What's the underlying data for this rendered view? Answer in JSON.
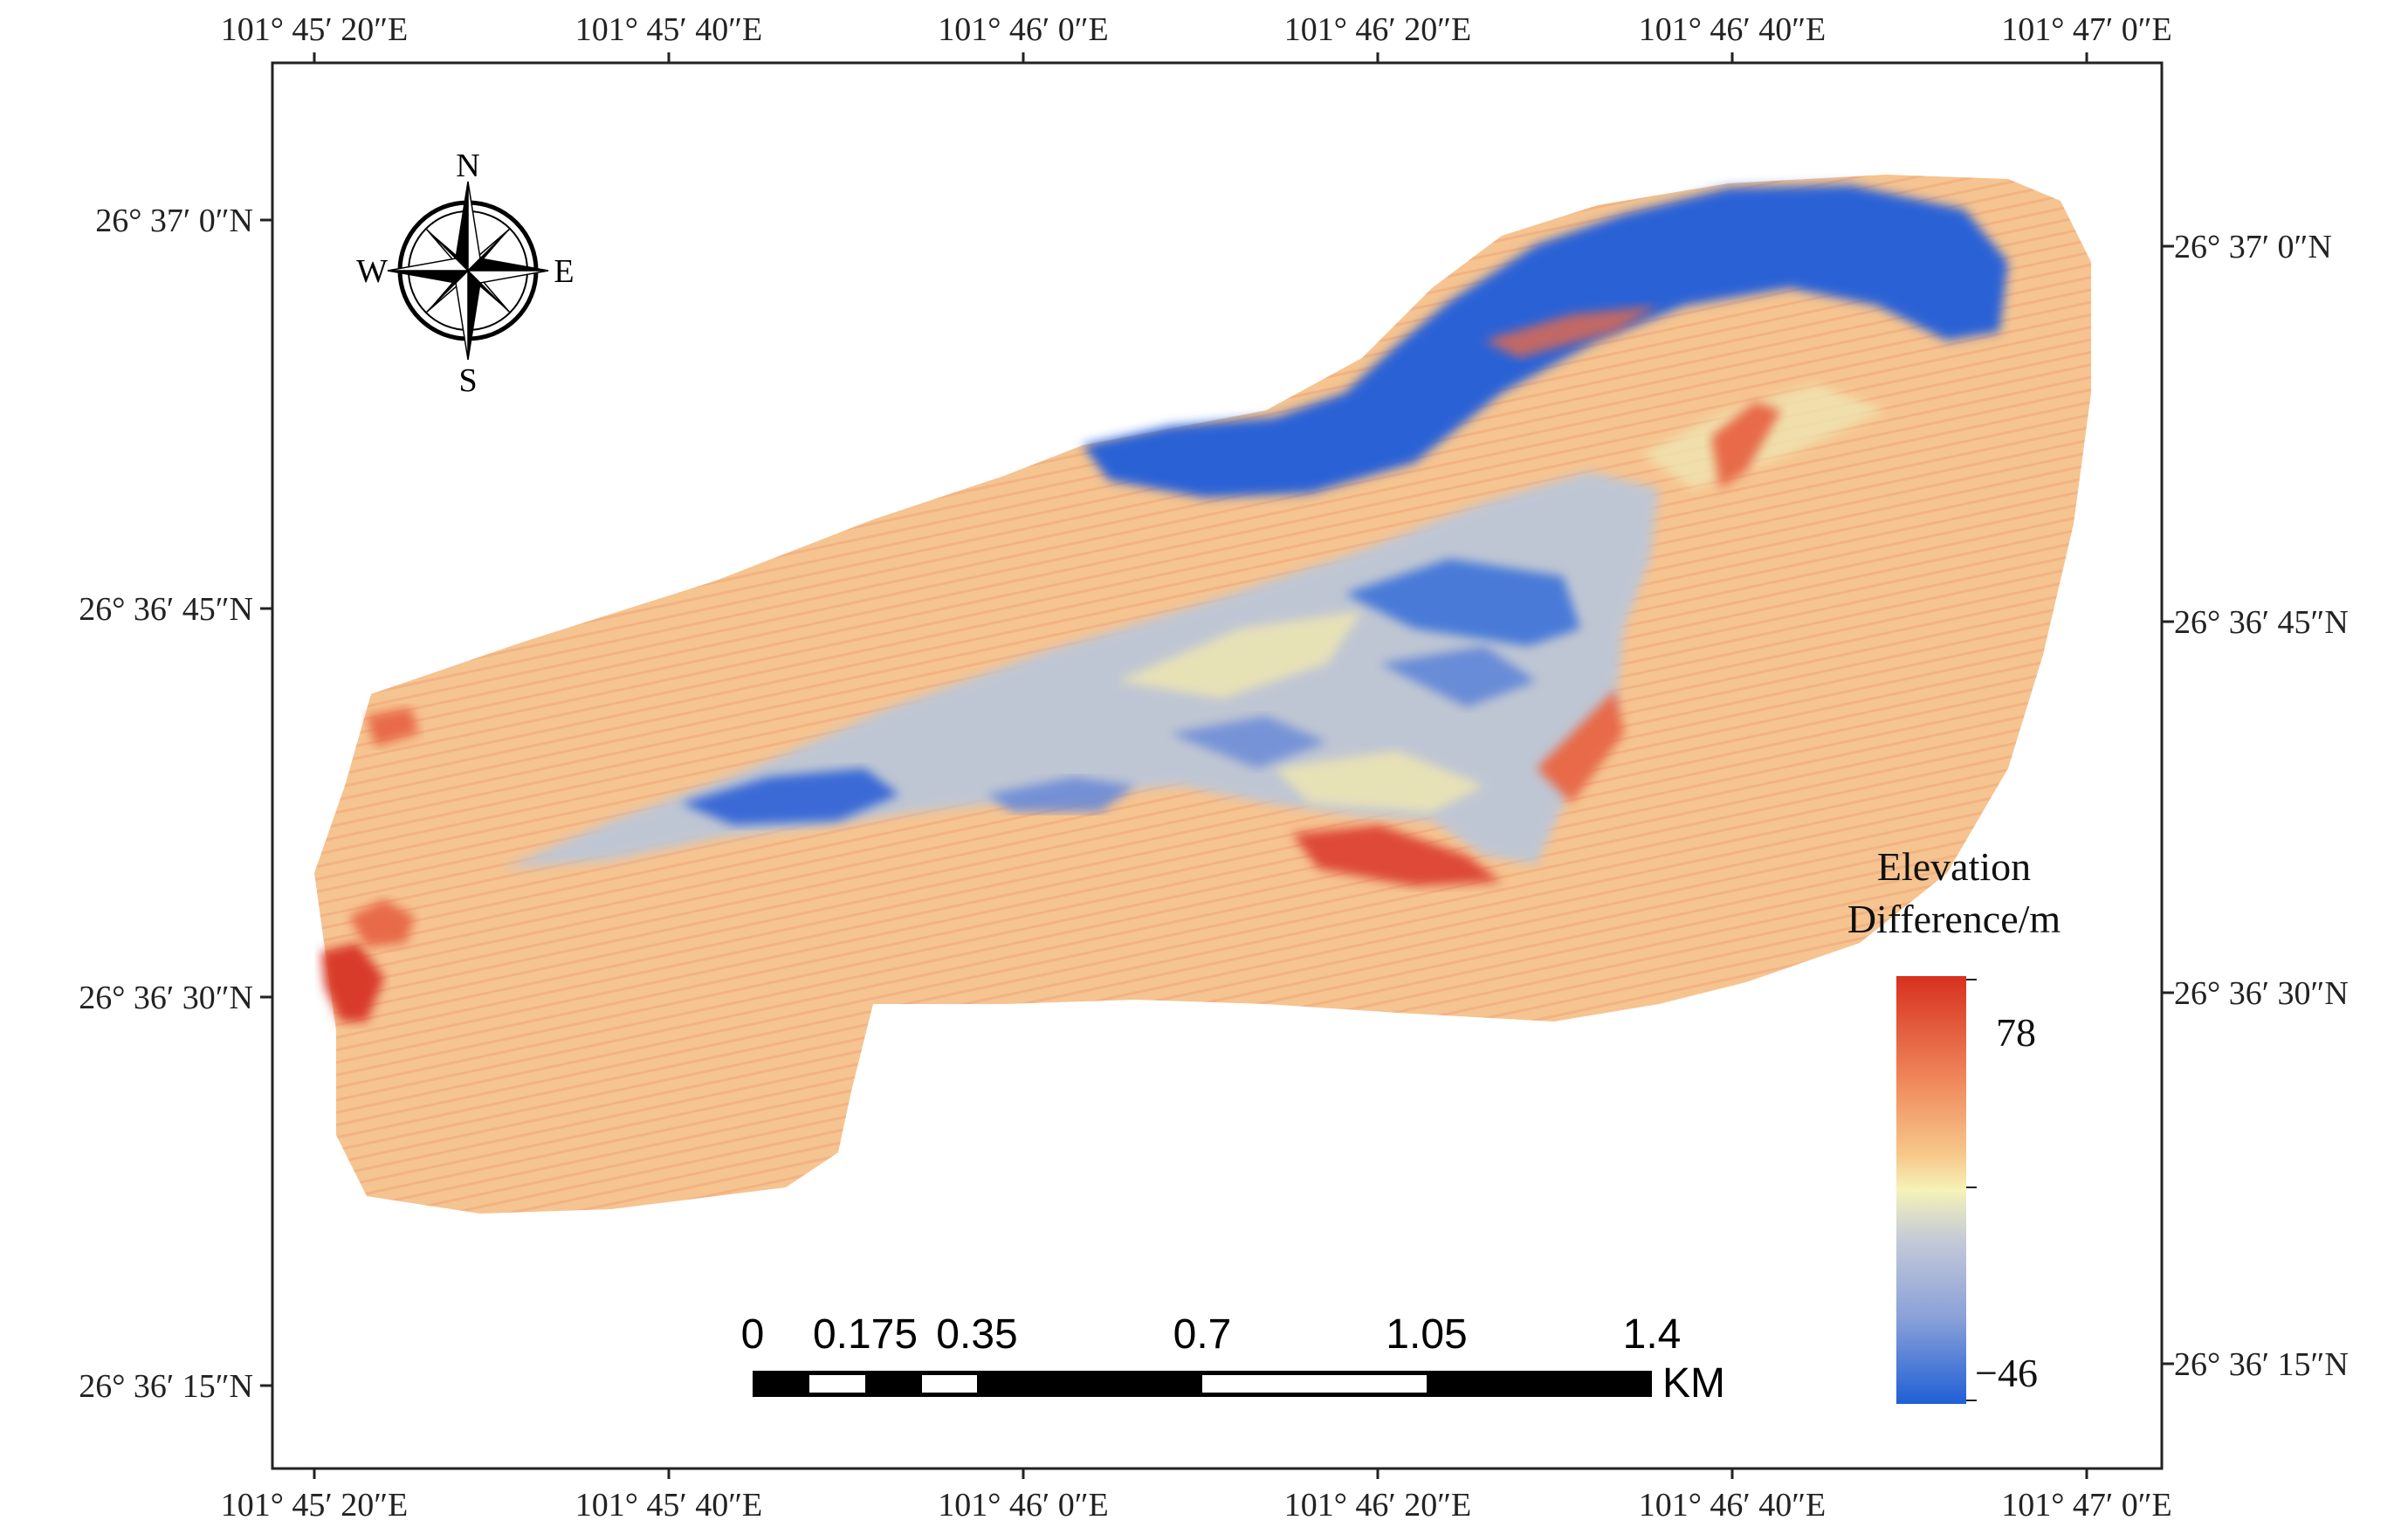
{
  "map": {
    "top_lon_labels": [
      "101° 45′ 20″E",
      "101° 45′ 40″E",
      "101° 46′ 0″E",
      "101° 46′ 20″E",
      "101° 46′ 40″E",
      "101° 47′ 0″E"
    ],
    "bottom_lon_labels": [
      "101° 45′ 20″E",
      "101° 45′ 40″E",
      "101° 46′ 0″E",
      "101° 46′ 20″E",
      "101° 46′ 40″E",
      "101° 47′ 0″E"
    ],
    "left_lat_labels": [
      "26° 37′ 0″N",
      "26° 36′ 45″N",
      "26° 36′ 30″N",
      "26° 36′ 15″N"
    ],
    "right_lat_labels": [
      "26° 37′ 0″N",
      "26° 36′ 45″N",
      "26° 36′ 30″N",
      "26° 36′ 15″N"
    ]
  },
  "compass": {
    "icon": "compass-rose-icon",
    "north": "N",
    "south": "S",
    "east": "E",
    "west": "W"
  },
  "scale_bar": {
    "labels": [
      "0",
      "0.175",
      "0.35",
      "0.7",
      "1.05",
      "1.4"
    ],
    "unit": "KM"
  },
  "legend": {
    "title_line1": "Elevation",
    "title_line2": "Difference/m",
    "max_value": "78",
    "min_value": "−46",
    "colors": [
      "#d7301f",
      "#f08a5d",
      "#f7c98b",
      "#f5f2b8",
      "#c3c9d8",
      "#8aa0d8",
      "#1f5fd6"
    ]
  },
  "colors": {
    "red": "#df4a38",
    "orange": "#f3b98a",
    "yellow": "#f1e6b0",
    "gray": "#bcc5d3",
    "blue": "#2b62d6"
  }
}
